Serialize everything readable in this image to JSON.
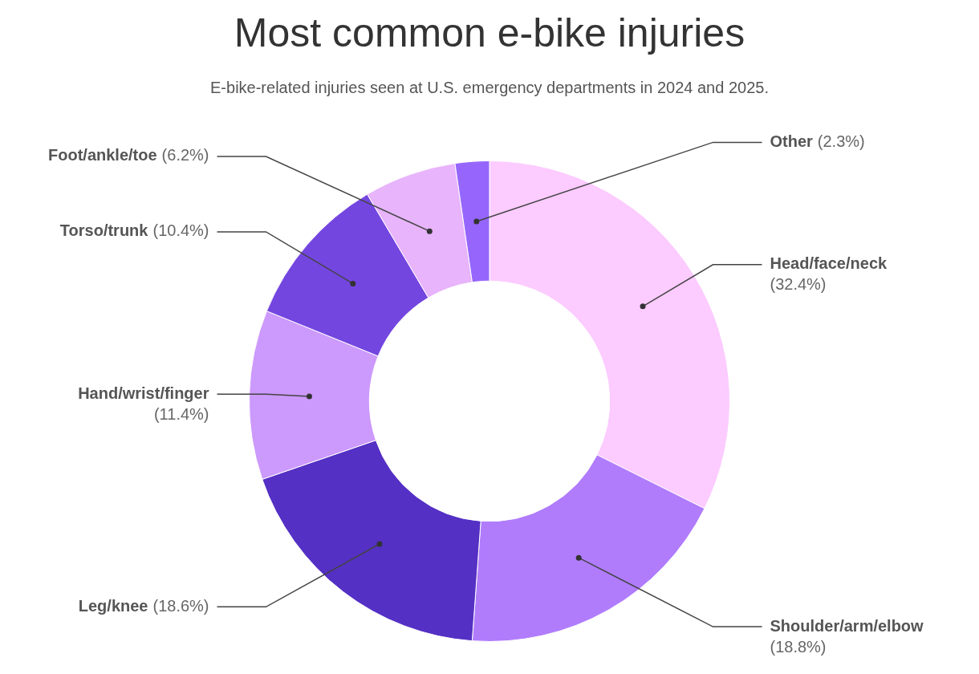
{
  "chart_data": {
    "type": "donut",
    "title": "Most common e-bike injuries",
    "subtitle": "E-bike-related injuries seen at U.S. emergency departments in 2024 and 2025.",
    "categories": [
      "Head/face/neck",
      "Shoulder/arm/elbow",
      "Leg/knee",
      "Hand/wrist/finger",
      "Torso/trunk",
      "Foot/ankle/toe",
      "Other"
    ],
    "values": [
      32.4,
      18.8,
      18.6,
      11.4,
      10.4,
      6.2,
      2.3
    ],
    "value_labels": [
      "(32.4%)",
      "(18.8%)",
      "(18.6%)",
      "(11.4%)",
      "(10.4%)",
      "(6.2%)",
      "(2.3%)"
    ],
    "colors": [
      "#fccbff",
      "#b07cfc",
      "#5530c4",
      "#cc99fc",
      "#7446e0",
      "#e8b4fc",
      "#9666fc"
    ],
    "legend": false
  }
}
